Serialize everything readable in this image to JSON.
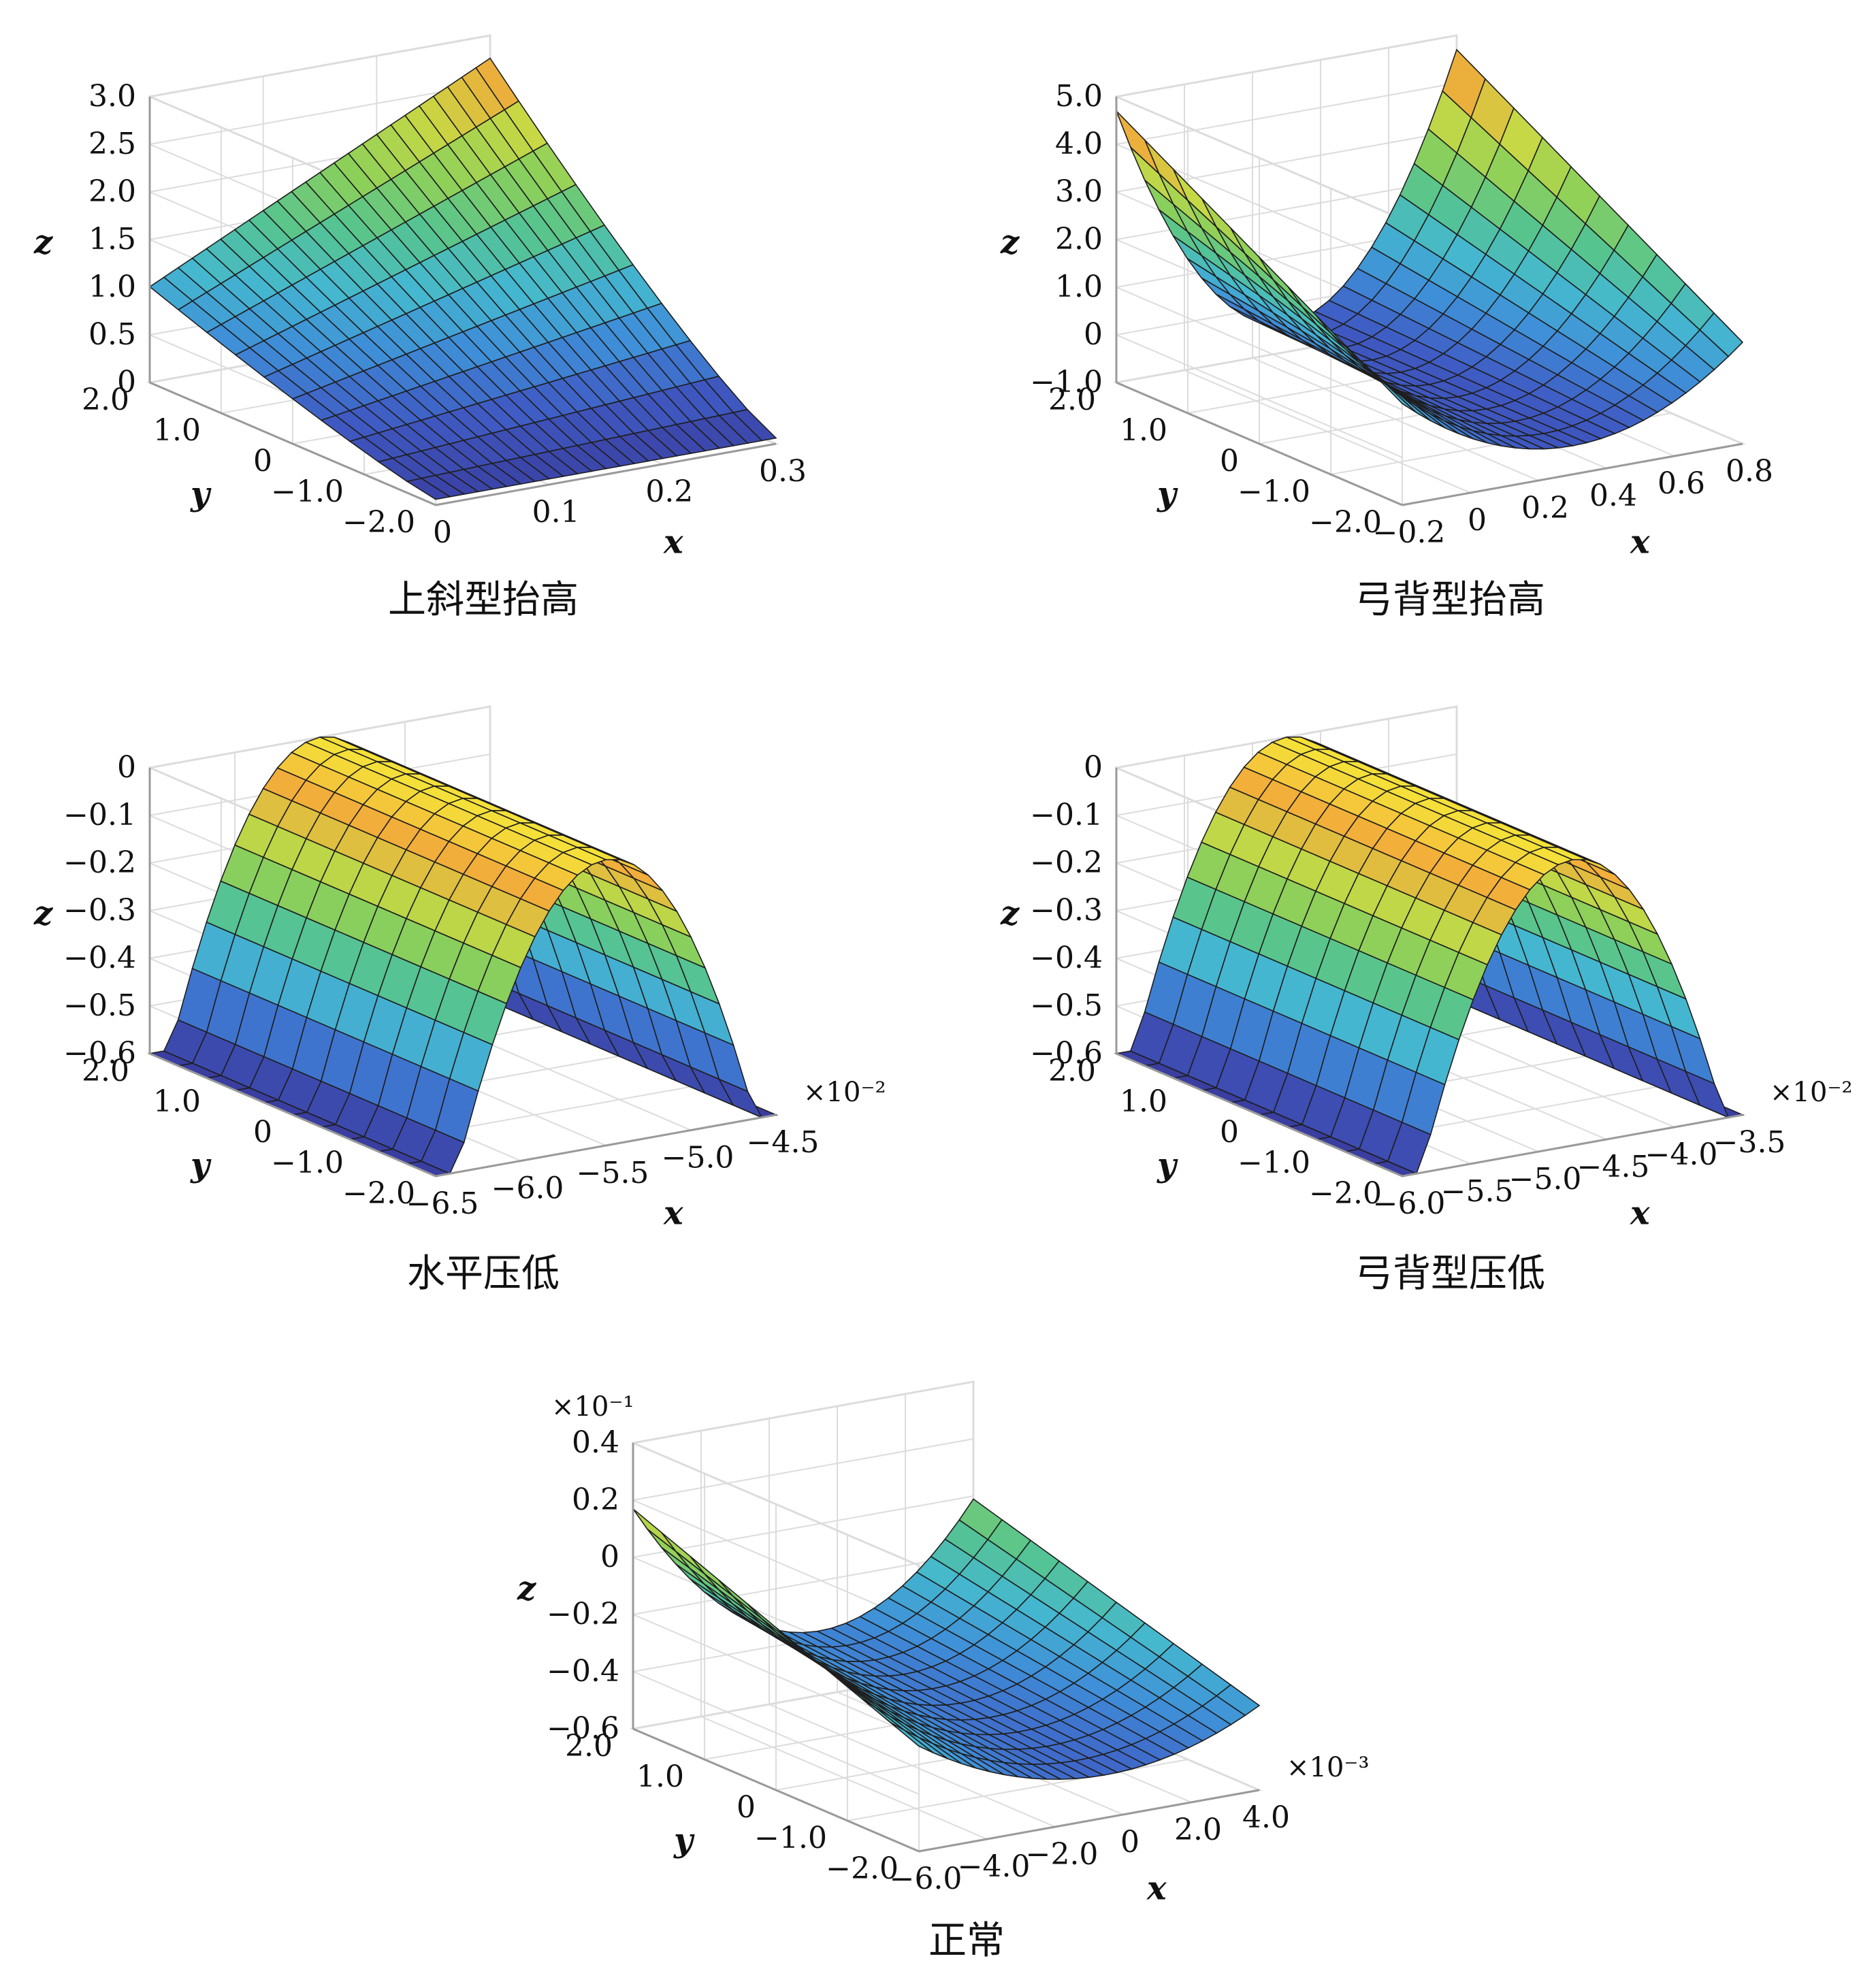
{
  "colors": {
    "grid": "#dcdcdc",
    "axis": "#9a9a9a",
    "edge": "#1e1e1e",
    "colormap": [
      "#3a3ea0",
      "#3f5bc4",
      "#3f8fd8",
      "#45b8cf",
      "#56c48f",
      "#8cd05a",
      "#c8d844",
      "#f2a83a",
      "#f5e23a"
    ]
  },
  "chart_data": [
    {
      "type": "surface",
      "caption": "上斜型抬高",
      "xlabel": "x",
      "ylabel": "y",
      "zlabel": "z",
      "x_ticks": [
        "0",
        "0.1",
        "0.2",
        "0.3"
      ],
      "y_ticks": [
        "2.0",
        "1.0",
        "0",
        "−1.0",
        "−2.0"
      ],
      "z_ticks": [
        "0",
        "0.5",
        "1.0",
        "1.5",
        "2.0",
        "2.5",
        "3.0"
      ],
      "xlim": [
        0,
        0.3
      ],
      "ylim": [
        -2,
        2
      ],
      "zlim": [
        0,
        3
      ],
      "x_multiplier": "",
      "z_multiplier": "",
      "surface": {
        "shape": "inclined_raise",
        "x_min": 0,
        "x_max": 0.3,
        "z_min": 0,
        "z_max": 3.0
      }
    },
    {
      "type": "surface",
      "caption": "弓背型抬高",
      "xlabel": "x",
      "ylabel": "y",
      "zlabel": "z",
      "x_ticks": [
        "−0.2",
        "0",
        "0.2",
        "0.4",
        "0.6",
        "0.8"
      ],
      "y_ticks": [
        "2.0",
        "1.0",
        "0",
        "−1.0",
        "−2.0"
      ],
      "z_ticks": [
        "−1.0",
        "0",
        "1.0",
        "2.0",
        "3.0",
        "4.0",
        "5.0"
      ],
      "xlim": [
        -0.2,
        0.8
      ],
      "ylim": [
        -2,
        2
      ],
      "zlim": [
        -1,
        5
      ],
      "x_multiplier": "",
      "z_multiplier": "",
      "surface": {
        "shape": "arched_raise",
        "x_min": -0.2,
        "x_max": 0.8,
        "z_min": -1.0,
        "z_max": 5.0
      }
    },
    {
      "type": "surface",
      "caption": "水平压低",
      "xlabel": "x",
      "ylabel": "y",
      "zlabel": "z",
      "x_ticks": [
        "−6.5",
        "−6.0",
        "−5.5",
        "−5.0",
        "−4.5"
      ],
      "y_ticks": [
        "2.0",
        "1.0",
        "0",
        "−1.0",
        "−2.0"
      ],
      "z_ticks": [
        "−0.6",
        "−0.5",
        "−0.4",
        "−0.3",
        "−0.2",
        "−0.1",
        "0"
      ],
      "xlim": [
        -6.5,
        -4.5
      ],
      "ylim": [
        -2,
        2
      ],
      "zlim": [
        -0.6,
        0
      ],
      "x_multiplier": "×10⁻²",
      "z_multiplier": "",
      "surface": {
        "shape": "horizontal_depress",
        "x_min": -6.5,
        "x_max": -4.5,
        "z_min": -0.6,
        "z_max": 0
      }
    },
    {
      "type": "surface",
      "caption": "弓背型压低",
      "xlabel": "x",
      "ylabel": "y",
      "zlabel": "z",
      "x_ticks": [
        "−6.0",
        "−5.5",
        "−5.0",
        "−4.5",
        "−4.0",
        "−3.5"
      ],
      "y_ticks": [
        "2.0",
        "1.0",
        "0",
        "−1.0",
        "−2.0"
      ],
      "z_ticks": [
        "−0.6",
        "−0.5",
        "−0.4",
        "−0.3",
        "−0.2",
        "−0.1",
        "0"
      ],
      "xlim": [
        -6.0,
        -3.5
      ],
      "ylim": [
        -2,
        2
      ],
      "zlim": [
        -0.6,
        0
      ],
      "x_multiplier": "×10⁻²",
      "z_multiplier": "",
      "surface": {
        "shape": "arched_depress",
        "x_min": -6.0,
        "x_max": -3.5,
        "z_min": -0.6,
        "z_max": 0
      }
    },
    {
      "type": "surface",
      "caption": "正常",
      "xlabel": "x",
      "ylabel": "y",
      "zlabel": "z",
      "x_ticks": [
        "−6.0",
        "−4.0",
        "−2.0",
        "0",
        "2.0",
        "4.0"
      ],
      "y_ticks": [
        "2.0",
        "1.0",
        "0",
        "−1.0",
        "−2.0"
      ],
      "z_ticks": [
        "−0.6",
        "−0.4",
        "−0.2",
        "0",
        "0.2",
        "0.4"
      ],
      "xlim": [
        -6.0,
        4.0
      ],
      "ylim": [
        -2,
        2
      ],
      "zlim": [
        -0.6,
        0.4
      ],
      "x_multiplier": "×10⁻³",
      "z_multiplier": "×10⁻¹",
      "surface": {
        "shape": "normal",
        "x_min": -6.0,
        "x_max": 4.0,
        "z_min": -0.6,
        "z_max": 0.4
      }
    }
  ]
}
